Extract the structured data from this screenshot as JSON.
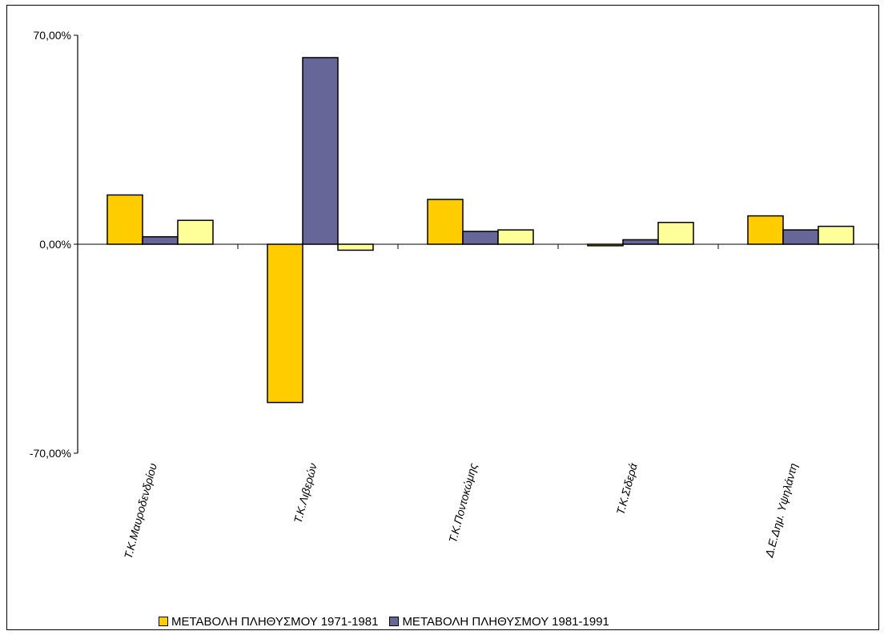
{
  "chart_data": {
    "type": "bar",
    "title": "",
    "xlabel": "",
    "ylabel": "",
    "ylim": [
      -70,
      70
    ],
    "yticks": [
      "70,00%",
      "0,00%",
      "-70,00%"
    ],
    "categories": [
      "Τ.Κ.Μαυροδενδρίου",
      "Τ.Κ.Λιβερών",
      "Τ.Κ.Ποντοκώμης",
      "Τ.Κ.Σιδερά",
      "Δ.Ε.Δημ. Υψηλάντη"
    ],
    "series": [
      {
        "name": "ΜΕΤΑΒΟΛΗ ΠΛΗΘΥΣΜΟΥ  1971-1981",
        "color": "#FFCC00",
        "values": [
          16.5,
          -53.0,
          15.0,
          -0.5,
          9.5
        ]
      },
      {
        "name": "ΜΕΤΑΒΟΛΗ ΠΛΗΘΥΣΜΟΥ  1981-1991",
        "color": "#666699",
        "values": [
          2.5,
          62.5,
          4.3,
          1.5,
          4.8
        ]
      },
      {
        "name": "",
        "color": "#FFFF99",
        "values": [
          8.0,
          -2.0,
          4.8,
          7.3,
          6.0
        ]
      }
    ],
    "legend_position": "bottom",
    "grid": false
  }
}
